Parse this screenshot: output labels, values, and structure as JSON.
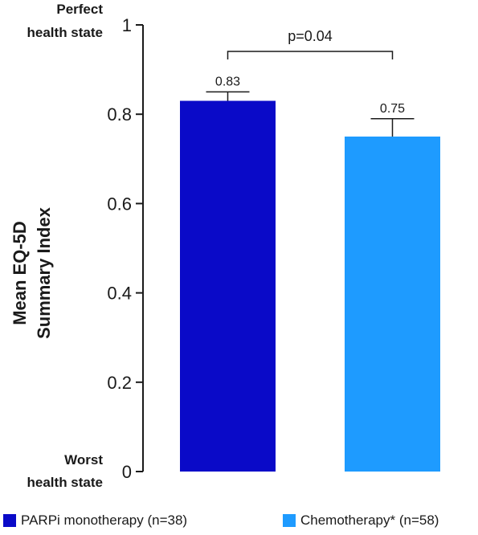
{
  "chart_data": {
    "type": "bar",
    "categories": [
      "PARPi monotherapy (n=38)",
      "Chemotherapy* (n=58)"
    ],
    "values": [
      0.83,
      0.75
    ],
    "error_upper": [
      0.85,
      0.79
    ],
    "colors": [
      "#0a0ac8",
      "#1e9bff"
    ],
    "data_labels": [
      "0.83",
      "0.75"
    ],
    "ylim": [
      0,
      1
    ],
    "yticks": [
      {
        "value": 0,
        "label": "0"
      },
      {
        "value": 0.2,
        "label": "0.2"
      },
      {
        "value": 0.4,
        "label": "0.4"
      },
      {
        "value": 0.6,
        "label": "0.6"
      },
      {
        "value": 0.8,
        "label": "0.8"
      },
      {
        "value": 1,
        "label": "1"
      }
    ],
    "ylabel": [
      "Mean EQ-5D",
      "Summary Index"
    ],
    "top_anchor": [
      "Perfect",
      "health state"
    ],
    "bottom_anchor": [
      "Worst",
      "health state"
    ],
    "significance": {
      "label": "p=0.04"
    },
    "legend": [
      {
        "label": "PARPi monotherapy (n=38)",
        "color": "#0a0ac8"
      },
      {
        "label": "Chemotherapy* (n=58)",
        "color": "#1e9bff"
      }
    ]
  }
}
